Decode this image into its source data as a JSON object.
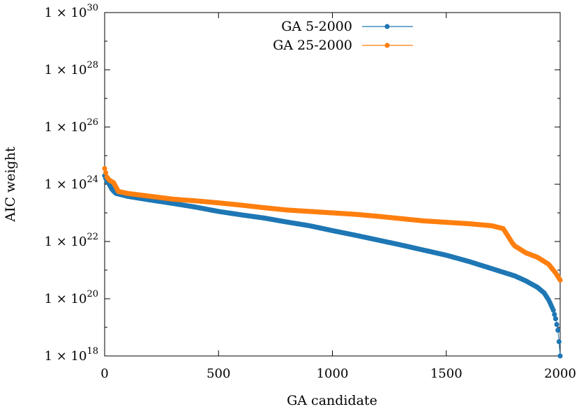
{
  "chart_data": {
    "type": "scatter",
    "xlabel": "GA candidate",
    "ylabel": "AIC weight",
    "xlim": [
      0,
      2000
    ],
    "ylim": [
      1e+18,
      1e+30
    ],
    "yscale": "log",
    "x_ticks": [
      0,
      500,
      1000,
      1500,
      2000
    ],
    "x_tick_labels": [
      "0",
      "500",
      "1000",
      "1500",
      "2000"
    ],
    "y_ticks": [
      18,
      20,
      22,
      24,
      26,
      28,
      30
    ],
    "y_tick_base": "1 × 10",
    "legend_position": "top-center",
    "grid": false,
    "series": [
      {
        "name": "GA 5-2000",
        "color": "#1f77b4",
        "keypoints_log10": [
          [
            0,
            24.3
          ],
          [
            10,
            24.1
          ],
          [
            20,
            24.0
          ],
          [
            30,
            23.85
          ],
          [
            40,
            23.75
          ],
          [
            50,
            23.68
          ],
          [
            100,
            23.58
          ],
          [
            200,
            23.45
          ],
          [
            300,
            23.33
          ],
          [
            400,
            23.2
          ],
          [
            500,
            23.05
          ],
          [
            600,
            22.93
          ],
          [
            700,
            22.82
          ],
          [
            800,
            22.68
          ],
          [
            900,
            22.55
          ],
          [
            1000,
            22.38
          ],
          [
            1100,
            22.22
          ],
          [
            1200,
            22.05
          ],
          [
            1300,
            21.88
          ],
          [
            1400,
            21.7
          ],
          [
            1500,
            21.52
          ],
          [
            1600,
            21.3
          ],
          [
            1700,
            21.05
          ],
          [
            1800,
            20.8
          ],
          [
            1850,
            20.62
          ],
          [
            1900,
            20.4
          ],
          [
            1930,
            20.2
          ],
          [
            1950,
            19.95
          ],
          [
            1970,
            19.6
          ],
          [
            1980,
            19.3
          ],
          [
            1990,
            18.9
          ],
          [
            1995,
            18.5
          ],
          [
            2000,
            18.0
          ]
        ]
      },
      {
        "name": "GA 25-2000",
        "color": "#ff7f0e",
        "keypoints_log10": [
          [
            0,
            24.55
          ],
          [
            10,
            24.25
          ],
          [
            20,
            24.15
          ],
          [
            40,
            24.05
          ],
          [
            50,
            23.9
          ],
          [
            60,
            23.75
          ],
          [
            100,
            23.68
          ],
          [
            200,
            23.58
          ],
          [
            300,
            23.48
          ],
          [
            400,
            23.42
          ],
          [
            500,
            23.35
          ],
          [
            600,
            23.27
          ],
          [
            700,
            23.18
          ],
          [
            800,
            23.1
          ],
          [
            900,
            23.05
          ],
          [
            1000,
            23.0
          ],
          [
            1100,
            22.95
          ],
          [
            1200,
            22.88
          ],
          [
            1300,
            22.8
          ],
          [
            1400,
            22.72
          ],
          [
            1500,
            22.67
          ],
          [
            1600,
            22.62
          ],
          [
            1700,
            22.55
          ],
          [
            1750,
            22.45
          ],
          [
            1770,
            22.2
          ],
          [
            1790,
            21.95
          ],
          [
            1800,
            21.85
          ],
          [
            1850,
            21.6
          ],
          [
            1900,
            21.45
          ],
          [
            1950,
            21.2
          ],
          [
            1980,
            20.9
          ],
          [
            2000,
            20.65
          ]
        ]
      }
    ]
  }
}
